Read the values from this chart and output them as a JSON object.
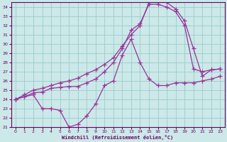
{
  "xlabel": "Windchill (Refroidissement éolien,°C)",
  "bg_color": "#cce8e8",
  "line_color": "#993399",
  "grid_color": "#99cccc",
  "axis_color": "#660066",
  "text_color": "#660066",
  "xlim": [
    -0.5,
    23.5
  ],
  "ylim": [
    21,
    34.5
  ],
  "xticks": [
    0,
    1,
    2,
    3,
    4,
    5,
    6,
    7,
    8,
    9,
    10,
    11,
    12,
    13,
    14,
    15,
    16,
    17,
    18,
    19,
    20,
    21,
    22,
    23
  ],
  "yticks": [
    21,
    22,
    23,
    24,
    25,
    26,
    27,
    28,
    29,
    30,
    31,
    32,
    33,
    34
  ],
  "line1_x": [
    0,
    1,
    2,
    3,
    4,
    5,
    6,
    7,
    8,
    9,
    10,
    11,
    12,
    13,
    14,
    15,
    16,
    17,
    18,
    19,
    20,
    21,
    22,
    23
  ],
  "line1_y": [
    24.0,
    24.3,
    24.5,
    23.0,
    23.0,
    22.8,
    21.0,
    21.3,
    22.2,
    23.5,
    25.5,
    26.0,
    28.8,
    30.5,
    28.0,
    26.2,
    25.5,
    25.5,
    25.8,
    25.8,
    25.8,
    26.0,
    26.2,
    26.5
  ],
  "line2_x": [
    0,
    1,
    2,
    3,
    4,
    5,
    6,
    7,
    8,
    9,
    10,
    11,
    12,
    13,
    14,
    15,
    16,
    17,
    18,
    19,
    20,
    21,
    22,
    23
  ],
  "line2_y": [
    24.0,
    24.3,
    24.7,
    24.8,
    25.2,
    25.3,
    25.4,
    25.4,
    25.8,
    26.2,
    27.0,
    28.0,
    29.5,
    31.5,
    32.2,
    34.3,
    34.3,
    34.0,
    33.5,
    32.0,
    27.3,
    27.0,
    27.2,
    27.3
  ],
  "line3_x": [
    0,
    1,
    2,
    3,
    4,
    5,
    6,
    7,
    8,
    9,
    10,
    11,
    12,
    13,
    14,
    15,
    16,
    17,
    18,
    19,
    20,
    21,
    22,
    23
  ],
  "line3_y": [
    24.0,
    24.5,
    25.0,
    25.2,
    25.5,
    25.8,
    26.0,
    26.3,
    26.8,
    27.2,
    27.8,
    28.5,
    29.8,
    31.0,
    32.0,
    34.5,
    34.5,
    34.5,
    33.8,
    32.5,
    29.5,
    26.5,
    27.2,
    27.3
  ]
}
